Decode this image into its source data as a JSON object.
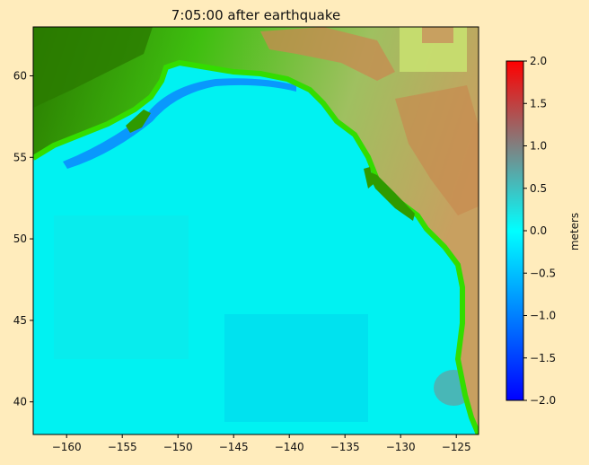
{
  "chart_data": {
    "type": "heatmap",
    "title": "7:05:00 after earthquake",
    "xlabel": "",
    "ylabel": "",
    "xlim": [
      -163,
      -123
    ],
    "ylim": [
      38,
      63
    ],
    "xticks": [
      -160,
      -155,
      -150,
      -145,
      -140,
      -135,
      -130,
      -125
    ],
    "yticks": [
      40,
      45,
      50,
      55,
      60
    ],
    "xtick_labels": [
      "−160",
      "−155",
      "−150",
      "−145",
      "−140",
      "−135",
      "−130",
      "−125"
    ],
    "ytick_labels": [
      "40",
      "45",
      "50",
      "55",
      "60"
    ],
    "colorbar": {
      "label": "meters",
      "range": [
        -2.0,
        2.0
      ],
      "ticks": [
        -2.0,
        -1.5,
        -1.0,
        -0.5,
        0.0,
        0.5,
        1.0,
        1.5,
        2.0
      ],
      "tick_labels": [
        "−2.0",
        "−1.5",
        "−1.0",
        "−0.5",
        "0.0",
        "0.5",
        "1.0",
        "1.5",
        "2.0"
      ],
      "colors": [
        "#0000ff",
        "#0080ff",
        "#00ffff",
        "#40c0c0",
        "#808080",
        "#c04040",
        "#ff0000"
      ]
    },
    "land_colors": {
      "lowland": "#33cc00",
      "forest": "#2a7a00",
      "highland": "#c88a50"
    },
    "ocean_color": "#00f2f2"
  }
}
